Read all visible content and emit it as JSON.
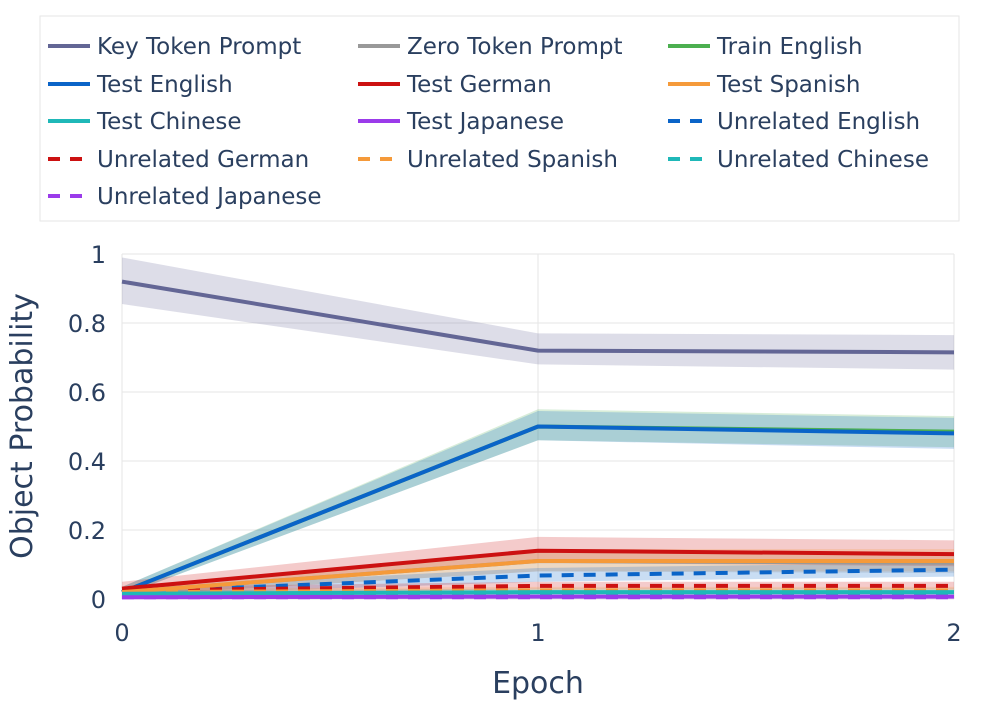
{
  "chart_data": {
    "type": "line",
    "title": "",
    "xlabel": "Epoch",
    "ylabel": "Object Probability",
    "x": [
      0,
      1,
      2
    ],
    "x_tick_labels": [
      "0",
      "1",
      "2"
    ],
    "y_tick_labels": [
      "0",
      "0.2",
      "0.4",
      "0.6",
      "0.8",
      "1"
    ],
    "y_ticks": [
      0,
      0.2,
      0.4,
      0.6,
      0.8,
      1
    ],
    "xlim": [
      0,
      2
    ],
    "ylim": [
      0,
      1
    ],
    "grid": true,
    "legend_position": "top",
    "series": [
      {
        "name": "Key Token Prompt",
        "color": "#636695",
        "dash": "solid",
        "values": [
          0.92,
          0.72,
          0.715
        ],
        "band_lower": [
          0.855,
          0.68,
          0.665
        ],
        "band_upper": [
          0.99,
          0.77,
          0.765
        ]
      },
      {
        "name": "Zero Token Prompt",
        "color": "#999999",
        "dash": "solid",
        "values": [
          0.02,
          0.11,
          0.105
        ],
        "band_lower": [
          0.01,
          0.08,
          0.075
        ],
        "band_upper": [
          0.035,
          0.14,
          0.135
        ]
      },
      {
        "name": "Train English",
        "color": "#4caf50",
        "dash": "solid",
        "values": [
          0.02,
          0.5,
          0.485
        ],
        "band_lower": [
          0.01,
          0.46,
          0.44
        ],
        "band_upper": [
          0.035,
          0.55,
          0.53
        ]
      },
      {
        "name": "Test English",
        "color": "#0a64c8",
        "dash": "solid",
        "values": [
          0.02,
          0.5,
          0.48
        ],
        "band_lower": [
          0.01,
          0.46,
          0.435
        ],
        "band_upper": [
          0.035,
          0.545,
          0.525
        ]
      },
      {
        "name": "Test German",
        "color": "#cc1111",
        "dash": "solid",
        "values": [
          0.03,
          0.14,
          0.13
        ],
        "band_lower": [
          0.015,
          0.105,
          0.095
        ],
        "band_upper": [
          0.05,
          0.18,
          0.17
        ]
      },
      {
        "name": "Test Spanish",
        "color": "#f59a3a",
        "dash": "solid",
        "values": [
          0.02,
          0.11,
          0.11
        ],
        "band_lower": [
          0.01,
          0.08,
          0.08
        ],
        "band_upper": [
          0.035,
          0.145,
          0.145
        ]
      },
      {
        "name": "Test Chinese",
        "color": "#1fb8b8",
        "dash": "solid",
        "values": [
          0.015,
          0.02,
          0.02
        ],
        "band_lower": [
          0.005,
          0.01,
          0.01
        ],
        "band_upper": [
          0.025,
          0.03,
          0.03
        ]
      },
      {
        "name": "Test Japanese",
        "color": "#9b3bea",
        "dash": "solid",
        "values": [
          0.005,
          0.007,
          0.007
        ],
        "band_lower": [
          0.001,
          0.002,
          0.002
        ],
        "band_upper": [
          0.01,
          0.012,
          0.012
        ]
      },
      {
        "name": "Unrelated English",
        "color": "#0a64c8",
        "dash": "dash",
        "values": [
          0.02,
          0.068,
          0.085
        ],
        "band_lower": [
          0.01,
          0.05,
          0.065
        ],
        "band_upper": [
          0.03,
          0.09,
          0.105
        ]
      },
      {
        "name": "Unrelated German",
        "color": "#cc1111",
        "dash": "dash",
        "values": [
          0.025,
          0.038,
          0.038
        ],
        "band_lower": [
          0.015,
          0.028,
          0.028
        ],
        "band_upper": [
          0.035,
          0.05,
          0.05
        ]
      },
      {
        "name": "Unrelated Spanish",
        "color": "#f59a3a",
        "dash": "dash",
        "values": [
          0.02,
          0.025,
          0.025
        ],
        "band_lower": [
          0.01,
          0.015,
          0.015
        ],
        "band_upper": [
          0.03,
          0.035,
          0.035
        ]
      },
      {
        "name": "Unrelated Chinese",
        "color": "#1fb8b8",
        "dash": "dash",
        "values": [
          0.015,
          0.015,
          0.015
        ],
        "band_lower": [
          0.005,
          0.008,
          0.008
        ],
        "band_upper": [
          0.025,
          0.022,
          0.022
        ]
      },
      {
        "name": "Unrelated Japanese",
        "color": "#9b3bea",
        "dash": "dash",
        "values": [
          0.005,
          0.005,
          0.005
        ],
        "band_lower": [
          0.001,
          0.001,
          0.001
        ],
        "band_upper": [
          0.01,
          0.01,
          0.01
        ]
      }
    ]
  }
}
